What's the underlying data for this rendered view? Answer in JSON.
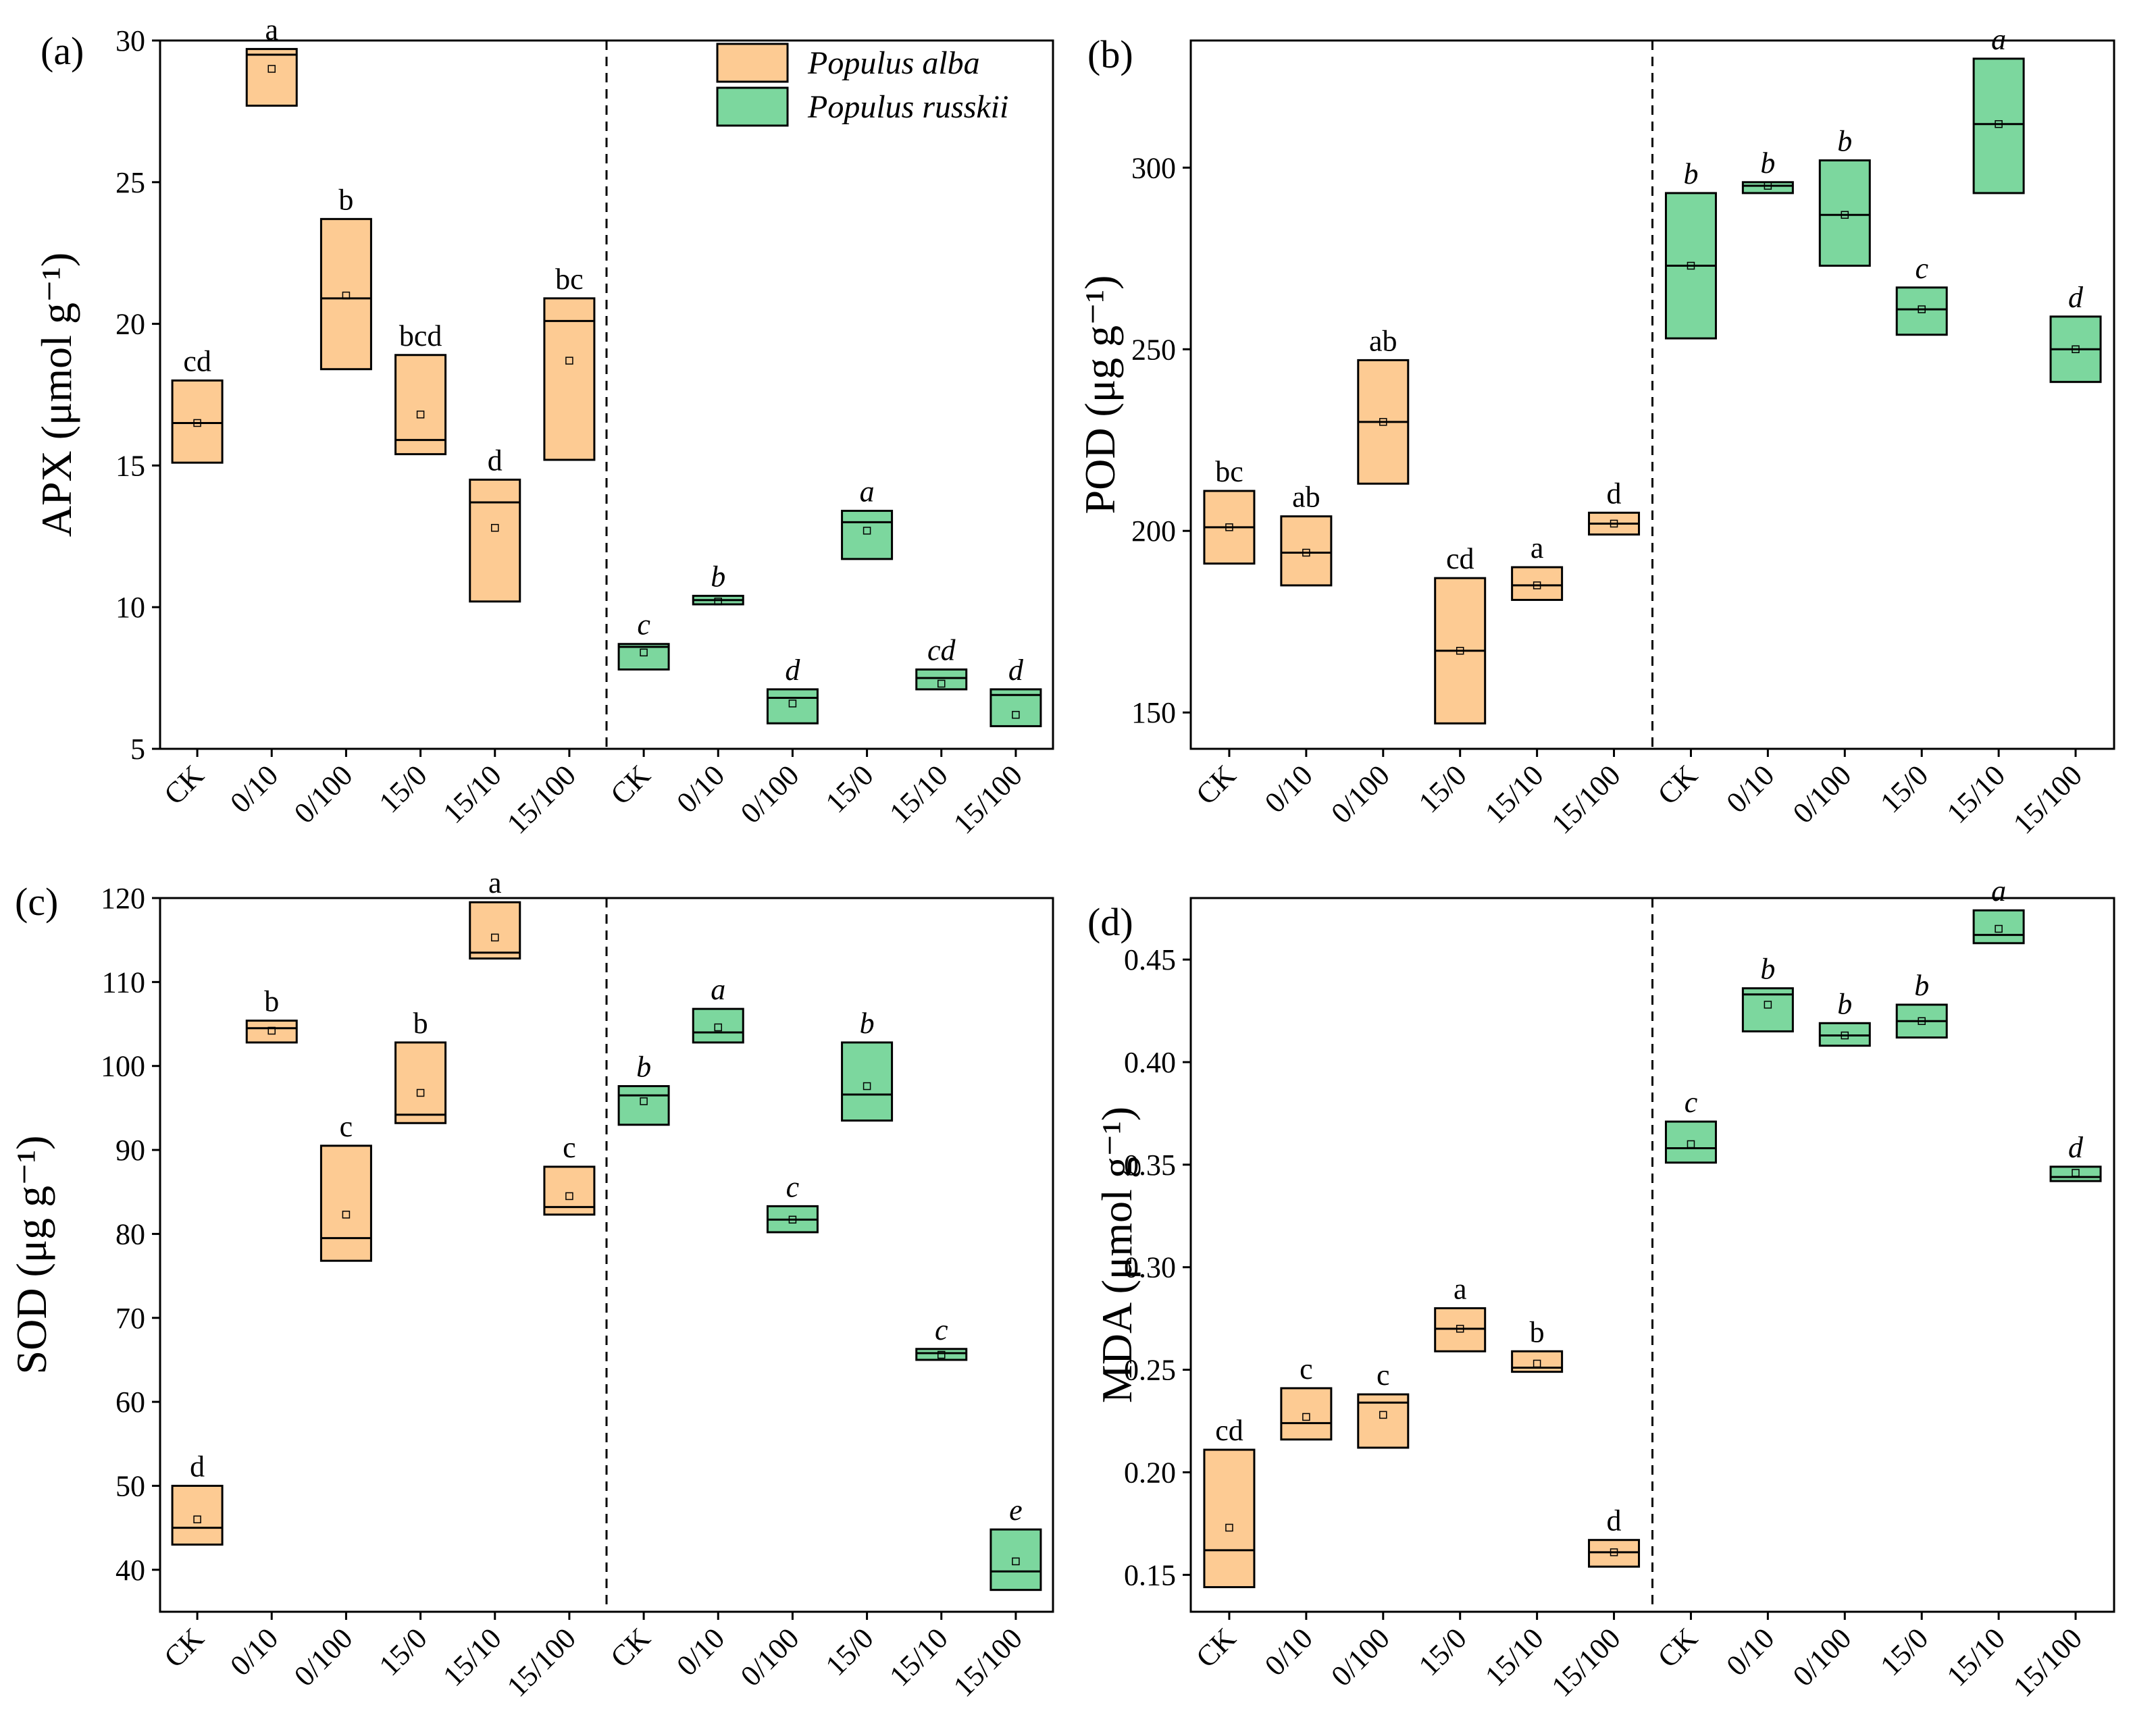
{
  "colors": {
    "alba_fill": "#FDCB93",
    "russkii_fill": "#7CD79E",
    "edge": "#000000",
    "divider": "#000000"
  },
  "legend": [
    {
      "series": "alba",
      "label": "Populus alba"
    },
    {
      "series": "russkii",
      "label": "Populus russkii"
    }
  ],
  "chart_data": [
    {
      "id": "a",
      "type": "box",
      "panel_label": "(a)",
      "ylabel": "APX (μmol g⁻¹)",
      "ylim": [
        5,
        30
      ],
      "yticks": [
        5,
        10,
        15,
        20,
        25,
        30
      ],
      "ytick_decimals": 0,
      "categories": [
        "CK",
        "0/10",
        "0/100",
        "15/0",
        "15/10",
        "15/100",
        "CK",
        "0/10",
        "0/100",
        "15/0",
        "15/10",
        "15/100"
      ],
      "show_legend": true,
      "series": [
        {
          "name": "Populus alba",
          "key": "alba",
          "boxes": [
            {
              "q1": 15.1,
              "q3": 18.0,
              "median": 16.5,
              "mean": 16.5,
              "letter": "cd"
            },
            {
              "q1": 27.7,
              "q3": 29.7,
              "median": 29.5,
              "mean": 29.0,
              "letter": "a"
            },
            {
              "q1": 18.4,
              "q3": 23.7,
              "median": 20.9,
              "mean": 21.0,
              "letter": "b"
            },
            {
              "q1": 15.4,
              "q3": 18.9,
              "median": 15.9,
              "mean": 16.8,
              "letter": "bcd"
            },
            {
              "q1": 10.2,
              "q3": 14.5,
              "median": 13.7,
              "mean": 12.8,
              "letter": "d"
            },
            {
              "q1": 15.2,
              "q3": 20.9,
              "median": 20.1,
              "mean": 18.7,
              "letter": "bc"
            }
          ]
        },
        {
          "name": "Populus russkii",
          "key": "russkii",
          "boxes": [
            {
              "q1": 7.8,
              "q3": 8.7,
              "median": 8.6,
              "mean": 8.4,
              "letter": "c"
            },
            {
              "q1": 10.1,
              "q3": 10.4,
              "median": 10.25,
              "mean": 10.2,
              "letter": "b"
            },
            {
              "q1": 5.9,
              "q3": 7.1,
              "median": 6.8,
              "mean": 6.6,
              "letter": "d"
            },
            {
              "q1": 11.7,
              "q3": 13.4,
              "median": 13.0,
              "mean": 12.7,
              "letter": "a"
            },
            {
              "q1": 7.1,
              "q3": 7.8,
              "median": 7.5,
              "mean": 7.3,
              "letter": "cd"
            },
            {
              "q1": 5.8,
              "q3": 7.1,
              "median": 6.9,
              "mean": 6.2,
              "letter": "d"
            }
          ]
        }
      ]
    },
    {
      "id": "b",
      "type": "box",
      "panel_label": "(b)",
      "ylabel": "POD (μg g⁻¹)",
      "ylim": [
        140,
        335
      ],
      "yticks": [
        150,
        200,
        250,
        300
      ],
      "ytick_decimals": 0,
      "categories": [
        "CK",
        "0/10",
        "0/100",
        "15/0",
        "15/10",
        "15/100",
        "CK",
        "0/10",
        "0/100",
        "15/0",
        "15/10",
        "15/100"
      ],
      "show_legend": false,
      "series": [
        {
          "name": "Populus alba",
          "key": "alba",
          "boxes": [
            {
              "q1": 191,
              "q3": 211,
              "median": 201,
              "mean": 201,
              "letter": "bc"
            },
            {
              "q1": 185,
              "q3": 204,
              "median": 194,
              "mean": 194,
              "letter": "ab"
            },
            {
              "q1": 213,
              "q3": 247,
              "median": 230,
              "mean": 230,
              "letter": "ab"
            },
            {
              "q1": 147,
              "q3": 187,
              "median": 167,
              "mean": 167,
              "letter": "cd"
            },
            {
              "q1": 181,
              "q3": 190,
              "median": 185,
              "mean": 185,
              "letter": "a"
            },
            {
              "q1": 199,
              "q3": 205,
              "median": 202,
              "mean": 202,
              "letter": "d"
            }
          ]
        },
        {
          "name": "Populus russkii",
          "key": "russkii",
          "boxes": [
            {
              "q1": 253,
              "q3": 293,
              "median": 273,
              "mean": 273,
              "letter": "b"
            },
            {
              "q1": 293,
              "q3": 296,
              "median": 295,
              "mean": 295,
              "letter": "b"
            },
            {
              "q1": 273,
              "q3": 302,
              "median": 287,
              "mean": 287,
              "letter": "b"
            },
            {
              "q1": 254,
              "q3": 267,
              "median": 261,
              "mean": 261,
              "letter": "c"
            },
            {
              "q1": 293,
              "q3": 330,
              "median": 312,
              "mean": 312,
              "letter": "a"
            },
            {
              "q1": 241,
              "q3": 259,
              "median": 250,
              "mean": 250,
              "letter": "d"
            }
          ]
        }
      ]
    },
    {
      "id": "c",
      "type": "box",
      "panel_label": "(c)",
      "ylabel": "SOD (μg g⁻¹)",
      "ylim": [
        35,
        120
      ],
      "yticks": [
        40,
        50,
        60,
        70,
        80,
        90,
        100,
        110,
        120
      ],
      "ytick_decimals": 0,
      "categories": [
        "CK",
        "0/10",
        "0/100",
        "15/0",
        "15/10",
        "15/100",
        "CK",
        "0/10",
        "0/100",
        "15/0",
        "15/10",
        "15/100"
      ],
      "show_legend": false,
      "series": [
        {
          "name": "Populus alba",
          "key": "alba",
          "boxes": [
            {
              "q1": 43,
              "q3": 50,
              "median": 45,
              "mean": 46,
              "letter": "d"
            },
            {
              "q1": 102.8,
              "q3": 105.4,
              "median": 104.5,
              "mean": 104.2,
              "letter": "b"
            },
            {
              "q1": 76.8,
              "q3": 90.5,
              "median": 79.5,
              "mean": 82.3,
              "letter": "c"
            },
            {
              "q1": 93.2,
              "q3": 102.8,
              "median": 94.2,
              "mean": 96.8,
              "letter": "b"
            },
            {
              "q1": 112.8,
              "q3": 119.5,
              "median": 113.5,
              "mean": 115.3,
              "letter": "a"
            },
            {
              "q1": 82.3,
              "q3": 88.0,
              "median": 83.2,
              "mean": 84.5,
              "letter": "c"
            }
          ]
        },
        {
          "name": "Populus russkii",
          "key": "russkii",
          "boxes": [
            {
              "q1": 93,
              "q3": 97.6,
              "median": 96.5,
              "mean": 95.8,
              "letter": "b"
            },
            {
              "q1": 102.8,
              "q3": 106.8,
              "median": 104.0,
              "mean": 104.6,
              "letter": "a"
            },
            {
              "q1": 80.2,
              "q3": 83.3,
              "median": 81.7,
              "mean": 81.7,
              "letter": "c"
            },
            {
              "q1": 93.5,
              "q3": 102.8,
              "median": 96.6,
              "mean": 97.6,
              "letter": "b"
            },
            {
              "q1": 65.0,
              "q3": 66.3,
              "median": 65.8,
              "mean": 65.6,
              "letter": "c"
            },
            {
              "q1": 37.6,
              "q3": 44.8,
              "median": 39.8,
              "mean": 41.0,
              "letter": "e"
            }
          ]
        }
      ]
    },
    {
      "id": "d",
      "type": "box",
      "panel_label": "(d)",
      "ylabel": "MDA (μmol g⁻¹)",
      "ylim": [
        0.132,
        0.48
      ],
      "yticks": [
        0.15,
        0.2,
        0.25,
        0.3,
        0.35,
        0.4,
        0.45
      ],
      "ytick_decimals": 2,
      "categories": [
        "CK",
        "0/10",
        "0/100",
        "15/0",
        "15/10",
        "15/100",
        "CK",
        "0/10",
        "0/100",
        "15/0",
        "15/10",
        "15/100"
      ],
      "show_legend": false,
      "series": [
        {
          "name": "Populus alba",
          "key": "alba",
          "boxes": [
            {
              "q1": 0.144,
              "q3": 0.211,
              "median": 0.162,
              "mean": 0.173,
              "letter": "cd"
            },
            {
              "q1": 0.216,
              "q3": 0.241,
              "median": 0.224,
              "mean": 0.227,
              "letter": "c"
            },
            {
              "q1": 0.212,
              "q3": 0.238,
              "median": 0.234,
              "mean": 0.228,
              "letter": "c"
            },
            {
              "q1": 0.259,
              "q3": 0.28,
              "median": 0.27,
              "mean": 0.27,
              "letter": "a"
            },
            {
              "q1": 0.249,
              "q3": 0.259,
              "median": 0.251,
              "mean": 0.253,
              "letter": "b"
            },
            {
              "q1": 0.154,
              "q3": 0.167,
              "median": 0.161,
              "mean": 0.161,
              "letter": "d"
            }
          ]
        },
        {
          "name": "Populus russkii",
          "key": "russkii",
          "boxes": [
            {
              "q1": 0.351,
              "q3": 0.371,
              "median": 0.358,
              "mean": 0.36,
              "letter": "c"
            },
            {
              "q1": 0.415,
              "q3": 0.436,
              "median": 0.433,
              "mean": 0.428,
              "letter": "b"
            },
            {
              "q1": 0.408,
              "q3": 0.419,
              "median": 0.413,
              "mean": 0.413,
              "letter": "b"
            },
            {
              "q1": 0.412,
              "q3": 0.428,
              "median": 0.42,
              "mean": 0.42,
              "letter": "b"
            },
            {
              "q1": 0.458,
              "q3": 0.474,
              "median": 0.462,
              "mean": 0.465,
              "letter": "a"
            },
            {
              "q1": 0.342,
              "q3": 0.349,
              "median": 0.344,
              "mean": 0.346,
              "letter": "d"
            }
          ]
        }
      ]
    }
  ]
}
